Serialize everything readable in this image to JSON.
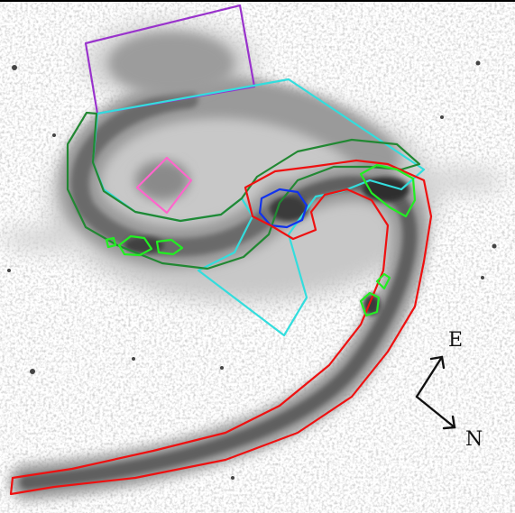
{
  "figure": {
    "compass": {
      "east_label": "E",
      "north_label": "N"
    },
    "colors": {
      "background": "#ffffff",
      "galaxy_dark": "#2b2b2b",
      "region_purple": "#9933cc",
      "region_cyan": "#33dddd",
      "region_dark_green": "#228833",
      "region_bright_green": "#22ee22",
      "region_pink": "#ff66cc",
      "region_red": "#ee1111",
      "region_blue": "#1133ee"
    }
  }
}
